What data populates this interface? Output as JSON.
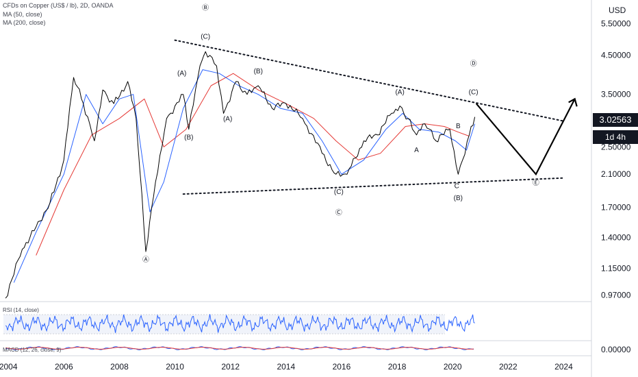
{
  "header": {
    "title": "CFDs on Copper (US$ / lb), 2D, OANDA",
    "ma50": "MA (50, close)",
    "ma200": "MA (200, close)"
  },
  "price_axis": {
    "currency": "USD",
    "current_price": "3.02563",
    "countdown": "1d 4h"
  },
  "indicators": {
    "rsi_label": "RSI (14, close)",
    "macd_label": "MACD (12, 26, close, 9)"
  },
  "colors": {
    "price": "#000000",
    "ma50": "#2962ff",
    "ma200": "#e53935",
    "rsi": "#2962ff",
    "macd": "#2962ff",
    "signal": "#e53935"
  },
  "chart_data": {
    "type": "line",
    "title": "CFDs on Copper (US$ / lb), 2D, OANDA",
    "xlabel": "",
    "ylabel": "USD",
    "x_ticks": [
      "2004",
      "2006",
      "2008",
      "2010",
      "2012",
      "2014",
      "2016",
      "2018",
      "2020",
      "2022",
      "2024"
    ],
    "y_ticks": [
      "0.97000",
      "1.15000",
      "1.40000",
      "1.70000",
      "2.10000",
      "2.50000",
      "3.50000",
      "4.50000",
      "5.50000"
    ],
    "y_scale": "log",
    "xlim": [
      2003.7,
      2025.0
    ],
    "ylim": [
      0.93,
      6.4
    ],
    "series": [
      {
        "name": "price",
        "x": [
          2003.9,
          2004.5,
          2005.0,
          2005.5,
          2006.0,
          2006.35,
          2006.7,
          2007.1,
          2007.4,
          2007.8,
          2008.3,
          2008.6,
          2008.95,
          2009.3,
          2009.7,
          2010.3,
          2010.5,
          2010.9,
          2011.1,
          2011.5,
          2011.75,
          2012.2,
          2012.6,
          2013.0,
          2013.5,
          2014.0,
          2014.6,
          2015.3,
          2015.8,
          2016.2,
          2016.8,
          2017.3,
          2017.8,
          2018.1,
          2018.4,
          2018.7,
          2019.0,
          2019.4,
          2019.9,
          2020.2,
          2020.6,
          2020.8
        ],
        "values": [
          0.95,
          1.3,
          1.5,
          1.75,
          2.3,
          3.9,
          3.3,
          2.6,
          3.6,
          3.3,
          3.8,
          3.0,
          1.28,
          2.0,
          3.0,
          3.5,
          2.8,
          4.2,
          4.6,
          4.2,
          3.1,
          3.8,
          3.5,
          3.7,
          3.2,
          3.3,
          3.0,
          2.4,
          2.1,
          2.1,
          2.6,
          2.7,
          3.1,
          3.25,
          3.0,
          2.7,
          2.9,
          2.6,
          2.8,
          2.1,
          2.7,
          3.03
        ]
      },
      {
        "name": "MA (50, close)",
        "x": [
          2004.2,
          2005.0,
          2006.0,
          2006.8,
          2007.4,
          2008.0,
          2008.5,
          2009.1,
          2009.6,
          2010.3,
          2011.0,
          2011.6,
          2012.3,
          2013.0,
          2013.8,
          2014.6,
          2015.3,
          2016.0,
          2016.8,
          2017.6,
          2018.2,
          2018.8,
          2019.5,
          2020.1,
          2020.5,
          2020.8
        ],
        "values": [
          1.05,
          1.45,
          2.1,
          3.5,
          2.9,
          3.4,
          3.5,
          1.65,
          2.0,
          3.2,
          4.1,
          4.0,
          3.7,
          3.5,
          3.2,
          3.1,
          2.6,
          2.1,
          2.3,
          2.8,
          3.1,
          2.8,
          2.75,
          2.6,
          2.45,
          2.9
        ]
      },
      {
        "name": "MA (200, close)",
        "x": [
          2005.0,
          2006.0,
          2007.0,
          2008.0,
          2008.9,
          2009.6,
          2010.4,
          2011.3,
          2012.1,
          2013.0,
          2014.0,
          2015.0,
          2015.8,
          2016.6,
          2017.4,
          2018.3,
          2019.0,
          2019.7,
          2020.2,
          2020.6
        ],
        "values": [
          1.25,
          1.9,
          2.7,
          3.0,
          3.4,
          2.5,
          2.8,
          3.7,
          4.0,
          3.6,
          3.3,
          3.0,
          2.6,
          2.3,
          2.4,
          2.85,
          2.9,
          2.85,
          2.75,
          2.68
        ]
      }
    ],
    "trendlines": [
      {
        "name": "upper",
        "x": [
          2010.0,
          2024.0
        ],
        "values": [
          4.95,
          2.95
        ]
      },
      {
        "name": "lower",
        "x": [
          2010.3,
          2024.0
        ],
        "values": [
          1.85,
          2.05
        ]
      }
    ],
    "projection": {
      "x": [
        2020.85,
        2023.0,
        2024.4
      ],
      "values": [
        3.3,
        2.1,
        3.4
      ]
    },
    "annotations": [
      {
        "text": "Ⓑ",
        "x": 2011.1,
        "y": 6.0
      },
      {
        "text": "(C)",
        "x": 2011.1,
        "y": 5.0
      },
      {
        "text": "(A)",
        "x": 2010.25,
        "y": 3.95
      },
      {
        "text": "(B)",
        "x": 2010.5,
        "y": 2.62
      },
      {
        "text": "(A)",
        "x": 2011.9,
        "y": 2.95
      },
      {
        "text": "(B)",
        "x": 2013.0,
        "y": 4.0
      },
      {
        "text": "Ⓐ",
        "x": 2008.95,
        "y": 1.2
      },
      {
        "text": "(C)",
        "x": 2015.9,
        "y": 1.85
      },
      {
        "text": "Ⓒ",
        "x": 2015.9,
        "y": 1.62
      },
      {
        "text": "(A)",
        "x": 2018.1,
        "y": 3.5
      },
      {
        "text": "A",
        "x": 2018.7,
        "y": 2.42
      },
      {
        "text": "B",
        "x": 2020.2,
        "y": 2.82
      },
      {
        "text": "C",
        "x": 2020.15,
        "y": 1.92
      },
      {
        "text": "(B)",
        "x": 2020.2,
        "y": 1.78
      },
      {
        "text": "Ⓓ",
        "x": 2020.75,
        "y": 4.2
      },
      {
        "text": "(C)",
        "x": 2020.75,
        "y": 3.5
      },
      {
        "text": "Ⓔ",
        "x": 2023.0,
        "y": 1.96
      }
    ],
    "rsi_panel": {
      "label": "RSI (14, close)",
      "band": [
        30,
        70
      ]
    },
    "macd_panel": {
      "label": "MACD (12, 26, close, 9)",
      "ytick": "0.00000"
    }
  }
}
